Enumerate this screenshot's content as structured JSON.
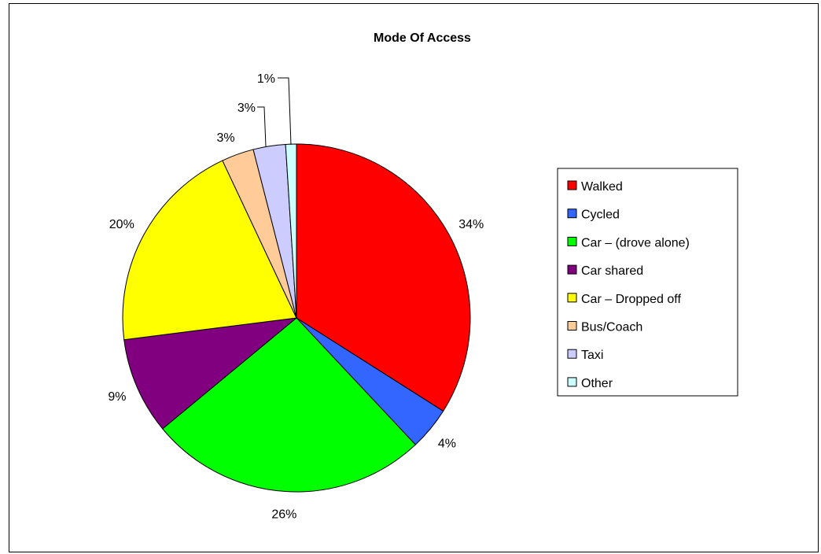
{
  "chart_data": {
    "type": "pie",
    "title": "Mode Of Access",
    "legend_position": "right",
    "slices": [
      {
        "label": "Walked",
        "value": 34,
        "value_label": "34%",
        "color": "#ff0000"
      },
      {
        "label": "Cycled",
        "value": 4,
        "value_label": "4%",
        "color": "#3366ff"
      },
      {
        "label": "Car – (drove alone)",
        "value": 26,
        "value_label": "26%",
        "color": "#00ff00"
      },
      {
        "label": "Car shared",
        "value": 9,
        "value_label": "9%",
        "color": "#800080"
      },
      {
        "label": "Car – Dropped off",
        "value": 20,
        "value_label": "20%",
        "color": "#ffff00"
      },
      {
        "label": "Bus/Coach",
        "value": 3,
        "value_label": "3%",
        "color": "#ffcc99"
      },
      {
        "label": "Taxi",
        "value": 3,
        "value_label": "3%",
        "color": "#ccccff"
      },
      {
        "label": "Other",
        "value": 1,
        "value_label": "1%",
        "color": "#ccffff"
      }
    ]
  }
}
